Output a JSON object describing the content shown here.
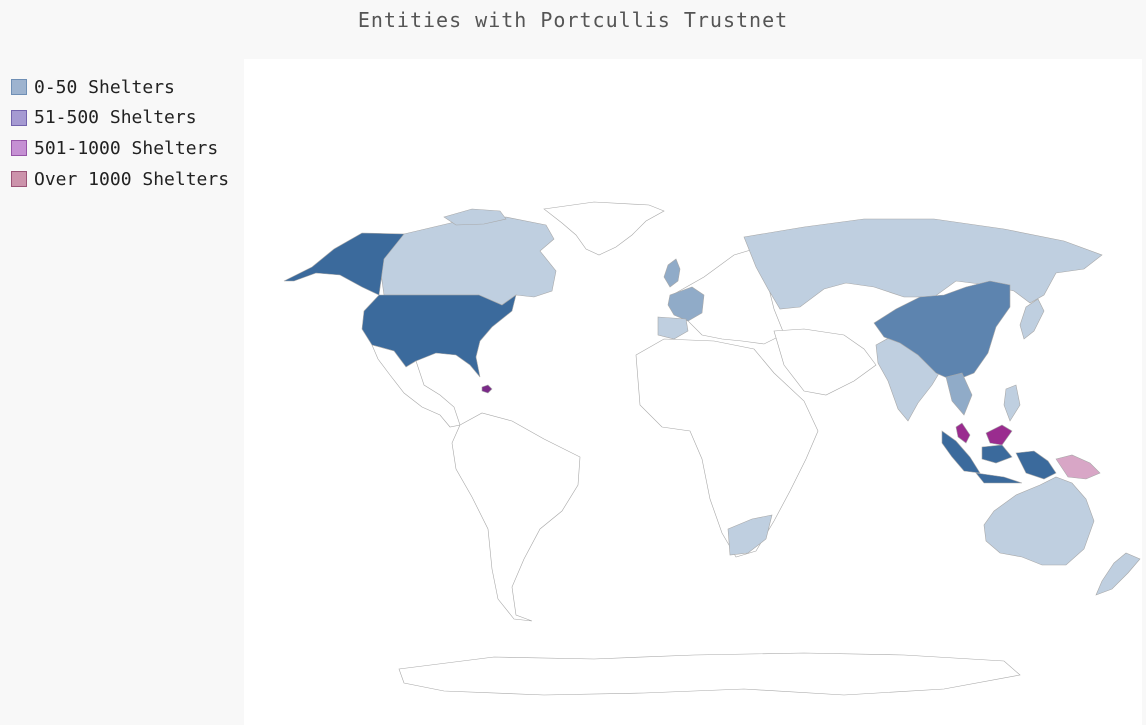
{
  "title": "Entities with Portcullis Trustnet",
  "legend": [
    {
      "label": "0-50 Shelters",
      "color": "#9db3cf",
      "border": "#6f8fb5"
    },
    {
      "label": "51-500 Shelters",
      "color": "#a59ad2",
      "border": "#7364ad"
    },
    {
      "label": "501-1000 Shelters",
      "color": "#c590d3",
      "border": "#9656a8"
    },
    {
      "label": "Over 1000 Shelters",
      "color": "#cc93ab",
      "border": "#9b5577"
    }
  ],
  "colors": {
    "none_fill": "#ffffff",
    "border": "#a8a8a8",
    "very_light": "#bfcfe0",
    "light": "#90abc8",
    "mid": "#5d84af",
    "dark": "#3b6a9c",
    "purple": "#7a2a88",
    "magenta": "#9a2c8f",
    "pink": "#d8a6c6"
  },
  "countries": [
    {
      "name": "United States",
      "category": "0-50 Shelters",
      "shade": "dark"
    },
    {
      "name": "Alaska",
      "category": "0-50 Shelters",
      "shade": "dark"
    },
    {
      "name": "Canada",
      "category": "0-50 Shelters",
      "shade": "very_light"
    },
    {
      "name": "Greenland",
      "category": "none",
      "shade": "none"
    },
    {
      "name": "Russia",
      "category": "0-50 Shelters",
      "shade": "very_light"
    },
    {
      "name": "China",
      "category": "0-50 Shelters",
      "shade": "mid"
    },
    {
      "name": "India",
      "category": "0-50 Shelters",
      "shade": "very_light"
    },
    {
      "name": "Australia",
      "category": "0-50 Shelters",
      "shade": "very_light"
    },
    {
      "name": "New Zealand",
      "category": "0-50 Shelters",
      "shade": "very_light"
    },
    {
      "name": "France",
      "category": "0-50 Shelters",
      "shade": "light"
    },
    {
      "name": "United Kingdom",
      "category": "0-50 Shelters",
      "shade": "light"
    },
    {
      "name": "Spain",
      "category": "0-50 Shelters",
      "shade": "very_light"
    },
    {
      "name": "South Africa",
      "category": "0-50 Shelters",
      "shade": "very_light"
    },
    {
      "name": "Indonesia",
      "category": "0-50 Shelters",
      "shade": "dark"
    },
    {
      "name": "Malaysia",
      "category": "51-500 Shelters",
      "shade": "magenta"
    },
    {
      "name": "Papua New Guinea",
      "category": "Over 1000 Shelters",
      "shade": "pink"
    },
    {
      "name": "Dominican Republic",
      "category": "501-1000 Shelters",
      "shade": "purple"
    },
    {
      "name": "Vietnam",
      "category": "0-50 Shelters",
      "shade": "light"
    },
    {
      "name": "Japan",
      "category": "0-50 Shelters",
      "shade": "very_light"
    },
    {
      "name": "Philippines",
      "category": "0-50 Shelters",
      "shade": "very_light"
    },
    {
      "name": "Mexico",
      "category": "none",
      "shade": "none"
    },
    {
      "name": "South America",
      "category": "none",
      "shade": "none"
    },
    {
      "name": "Africa",
      "category": "none",
      "shade": "none"
    },
    {
      "name": "Middle East",
      "category": "none",
      "shade": "none"
    },
    {
      "name": "Europe",
      "category": "none",
      "shade": "none"
    },
    {
      "name": "Antarctica",
      "category": "none",
      "shade": "none"
    }
  ]
}
